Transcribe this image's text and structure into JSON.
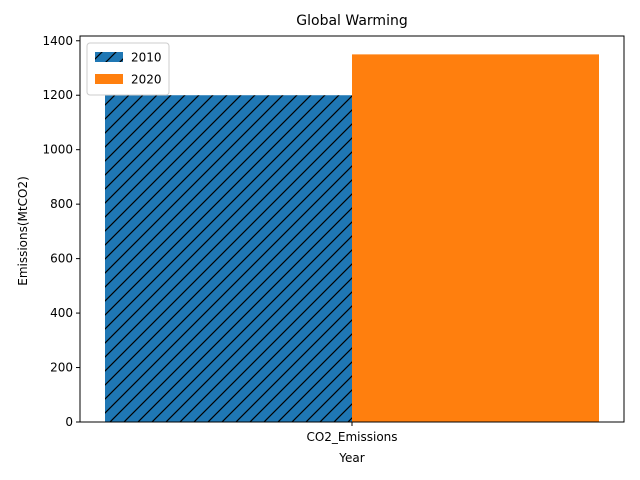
{
  "chart_data": {
    "type": "bar",
    "title": "Global Warming",
    "xlabel": "Year",
    "ylabel": "Emissions(MtCO2)",
    "categories": [
      "CO2_Emissions"
    ],
    "series": [
      {
        "name": "2010",
        "values": [
          1200
        ],
        "color": "#1f77b4",
        "hatch": "diagonal"
      },
      {
        "name": "2020",
        "values": [
          1350
        ],
        "color": "#ff7f0e",
        "hatch": "none"
      }
    ],
    "ylim": [
      0,
      1417.5
    ],
    "yticks": [
      0,
      200,
      400,
      600,
      800,
      1000,
      1200,
      1400
    ],
    "grid": false,
    "legend_position": "top-left"
  }
}
